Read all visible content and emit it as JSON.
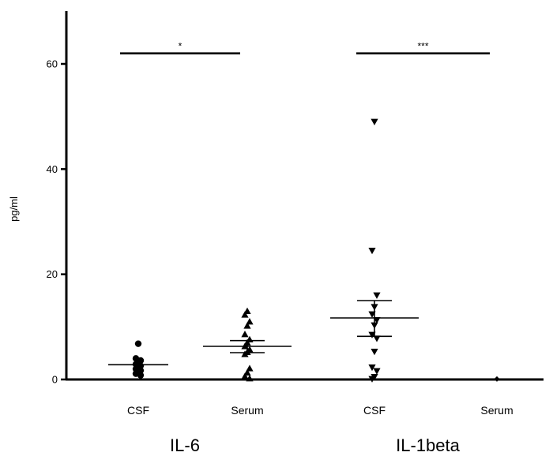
{
  "chart_data": {
    "type": "scatter",
    "ylabel": "pg/ml",
    "ylim": [
      0,
      70
    ],
    "yticks": [
      0,
      20,
      40,
      60
    ],
    "grid": false,
    "categories": [
      "CSF",
      "Serum",
      "CSF",
      "Serum"
    ],
    "groups": [
      {
        "label": "IL-6",
        "categories": [
          0,
          1
        ]
      },
      {
        "label": "IL-1beta",
        "categories": [
          2,
          3
        ]
      }
    ],
    "series": [
      {
        "category": "CSF",
        "group": "IL-6",
        "marker": "circle",
        "values": [
          6.8,
          4.0,
          3.6,
          3.2,
          2.9,
          2.6,
          2.3,
          2.0,
          1.7,
          1.4,
          1.1,
          0.8
        ],
        "mean": 2.8
      },
      {
        "category": "Serum",
        "group": "IL-6",
        "marker": "triangle-up",
        "values": [
          13.0,
          12.3,
          11.0,
          10.2,
          8.6,
          7.6,
          7.0,
          6.3,
          5.7,
          5.2,
          4.8,
          2.1,
          1.3,
          0.6,
          0.2
        ],
        "mean": 6.3,
        "sem_low": 5.1,
        "sem_high": 7.4
      },
      {
        "category": "CSF",
        "group": "IL-1beta",
        "marker": "triangle-down",
        "values": [
          49.0,
          24.5,
          16.0,
          13.8,
          12.4,
          11.3,
          10.3,
          8.5,
          7.8,
          5.3,
          2.3,
          1.6,
          0.5,
          0.1
        ],
        "mean": 11.7,
        "sem_low": 8.2,
        "sem_high": 15.0
      },
      {
        "category": "Serum",
        "group": "IL-1beta",
        "marker": "diamond",
        "values": [
          0.1
        ],
        "mean": 0.0
      }
    ],
    "annotations": [
      {
        "text": "*",
        "from": 0,
        "to": 1,
        "y": 62
      },
      {
        "text": "***",
        "from": 2,
        "to": 3,
        "y": 62
      }
    ]
  }
}
